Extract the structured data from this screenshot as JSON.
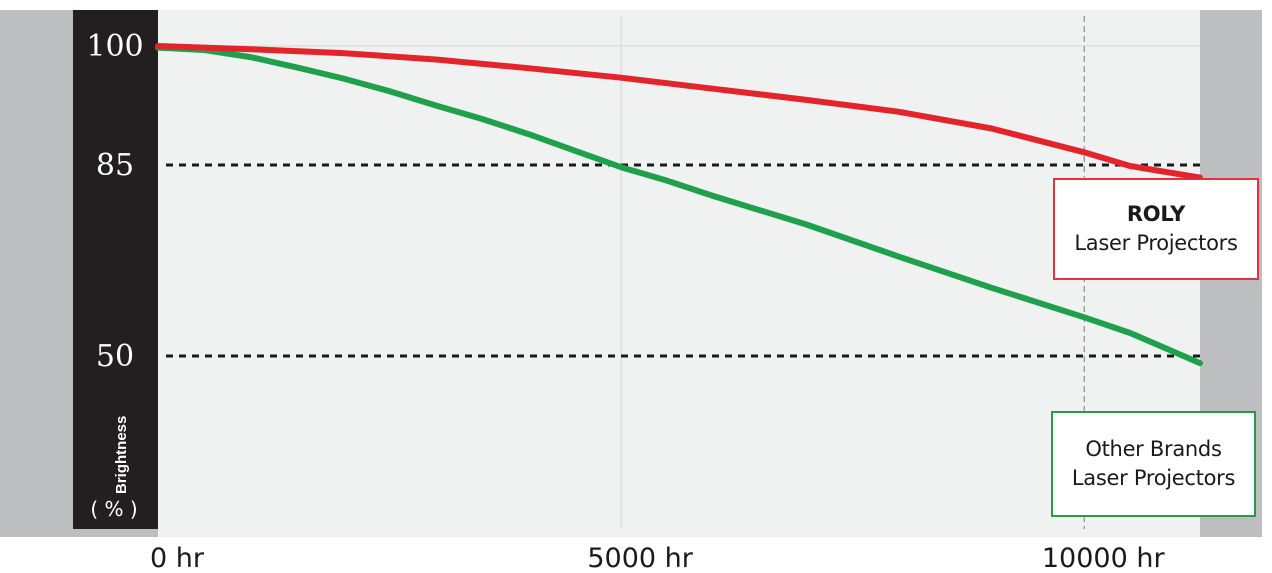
{
  "chart_data": {
    "type": "line",
    "ylabel": "Brightness",
    "ylabel_unit": "( % )",
    "y_ticks": [
      "100",
      "85",
      "50"
    ],
    "x_ticks": [
      {
        "value": 0,
        "label": "0 hr"
      },
      {
        "value": 5000,
        "label": "5000 hr"
      },
      {
        "value": 10000,
        "label": "10000 hr"
      }
    ],
    "xlim": [
      0,
      11250
    ],
    "reference_lines": [
      85,
      50
    ],
    "series": [
      {
        "name_line1": "ROLY",
        "name_line2": "Laser Projectors",
        "color": "#e3242b",
        "x": [
          0,
          1000,
          2000,
          3000,
          4000,
          5000,
          6000,
          7000,
          8000,
          9000,
          10000,
          10500,
          11250
        ],
        "y": [
          100,
          99.6,
          99.1,
          98.3,
          97.2,
          96,
          94.6,
          93.2,
          91.7,
          89.6,
          86.6,
          84.8,
          82.7
        ]
      },
      {
        "name_line1": "Other Brands",
        "name_line2": "Laser Projectors",
        "color": "#1fa04a",
        "x": [
          0,
          500,
          1000,
          1500,
          2000,
          2500,
          3000,
          3500,
          4000,
          4500,
          5000,
          5500,
          6000,
          7000,
          8000,
          9000,
          10000,
          10500,
          11250
        ],
        "y": [
          99.8,
          99.5,
          98.6,
          97.3,
          95.9,
          94.3,
          92.5,
          90.8,
          88.9,
          86.8,
          84.6,
          82.1,
          79.3,
          74.1,
          68.2,
          62.5,
          57.1,
          54.2,
          48.7
        ]
      }
    ]
  }
}
